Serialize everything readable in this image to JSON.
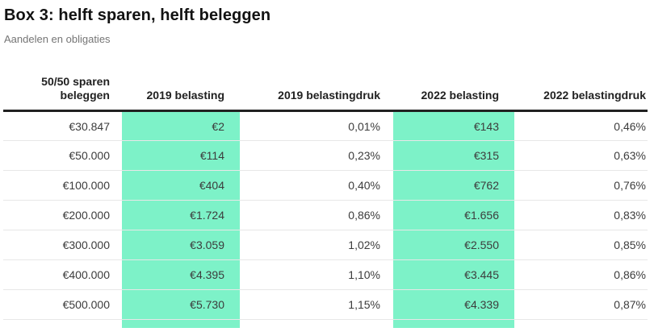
{
  "page": {
    "title": "Box 3: helft sparen, helft beleggen",
    "subtitle": "Aandelen en obligaties"
  },
  "table": {
    "columns": [
      {
        "label": "50/50 sparen beleggen",
        "highlight": false
      },
      {
        "label": "2019 belasting",
        "highlight": true
      },
      {
        "label": "2019 belastingdruk",
        "highlight": false
      },
      {
        "label": "2022 belasting",
        "highlight": true
      },
      {
        "label": "2022 belastingdruk",
        "highlight": false
      }
    ],
    "rows": [
      [
        "€30.847",
        "€2",
        "0,01%",
        "€143",
        "0,46%"
      ],
      [
        "€50.000",
        "€114",
        "0,23%",
        "€315",
        "0,63%"
      ],
      [
        "€100.000",
        "€404",
        "0,40%",
        "€762",
        "0,76%"
      ],
      [
        "€200.000",
        "€1.724",
        "0,86%",
        "€1.656",
        "0,83%"
      ],
      [
        "€300.000",
        "€3.059",
        "1,02%",
        "€2.550",
        "0,85%"
      ],
      [
        "€400.000",
        "€4.395",
        "1,10%",
        "€3.445",
        "0,86%"
      ],
      [
        "€500.000",
        "€5.730",
        "1,15%",
        "€4.339",
        "0,87%"
      ]
    ],
    "highlight_color": "#7df2c8",
    "header_rule_color": "#212121",
    "divider_color": "#e7e7e7"
  },
  "chart_data": {
    "type": "table",
    "title": "Box 3: helft sparen, helft beleggen",
    "subtitle": "Aandelen en obligaties",
    "categories": [
      "€30.847",
      "€50.000",
      "€100.000",
      "€200.000",
      "€300.000",
      "€400.000",
      "€500.000"
    ],
    "series": [
      {
        "name": "2019 belasting",
        "values": [
          2,
          114,
          404,
          1724,
          3059,
          4395,
          5730
        ],
        "unit": "EUR",
        "highlighted": true
      },
      {
        "name": "2019 belastingdruk",
        "values": [
          0.01,
          0.23,
          0.4,
          0.86,
          1.02,
          1.1,
          1.15
        ],
        "unit": "%",
        "highlighted": false
      },
      {
        "name": "2022 belasting",
        "values": [
          143,
          315,
          762,
          1656,
          2550,
          3445,
          4339
        ],
        "unit": "EUR",
        "highlighted": true
      },
      {
        "name": "2022 belastingdruk",
        "values": [
          0.46,
          0.63,
          0.76,
          0.83,
          0.85,
          0.86,
          0.87
        ],
        "unit": "%",
        "highlighted": false
      }
    ],
    "xlabel": "50/50 sparen beleggen",
    "legend_position": "none",
    "grid": "horizontal-dividers"
  }
}
